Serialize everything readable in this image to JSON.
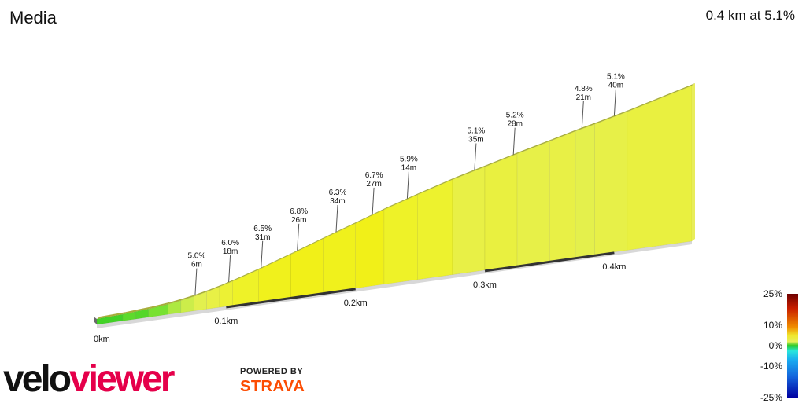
{
  "title": "Media",
  "summary": "0.4 km at 5.1%",
  "chart_data": {
    "type": "area",
    "x_unit": "km",
    "x_max": 0.46,
    "distance_ticks": [
      {
        "label": "0km",
        "value": 0.0
      },
      {
        "label": "0.1km",
        "value": 0.1
      },
      {
        "label": "0.2km",
        "value": 0.2
      },
      {
        "label": "0.3km",
        "value": 0.3
      },
      {
        "label": "0.4km",
        "value": 0.4
      }
    ],
    "segments": [
      {
        "end": 0.02,
        "grade": 0.8
      },
      {
        "end": 0.03,
        "grade": 1.4
      },
      {
        "end": 0.04,
        "grade": 1.2
      },
      {
        "end": 0.055,
        "grade": 2.0
      },
      {
        "end": 0.065,
        "grade": 3.0
      },
      {
        "end": 0.075,
        "grade": 3.6
      },
      {
        "end": 0.085,
        "grade": 4.2
      },
      {
        "end": 0.095,
        "grade": 5.0
      },
      {
        "end": 0.105,
        "grade": 5.6
      },
      {
        "end": 0.125,
        "grade": 6.0
      },
      {
        "end": 0.15,
        "grade": 6.6
      },
      {
        "end": 0.175,
        "grade": 6.8
      },
      {
        "end": 0.2,
        "grade": 6.6
      },
      {
        "end": 0.222,
        "grade": 6.8
      },
      {
        "end": 0.248,
        "grade": 6.0
      },
      {
        "end": 0.275,
        "grade": 5.8
      },
      {
        "end": 0.3,
        "grade": 5.0
      },
      {
        "end": 0.325,
        "grade": 5.2
      },
      {
        "end": 0.35,
        "grade": 4.8
      },
      {
        "end": 0.37,
        "grade": 5.0
      },
      {
        "end": 0.385,
        "grade": 4.4
      },
      {
        "end": 0.41,
        "grade": 4.8
      },
      {
        "end": 0.46,
        "grade": 5.2
      }
    ],
    "annotations": [
      {
        "x": 0.076,
        "grade": "5.0%",
        "length": "6m"
      },
      {
        "x": 0.102,
        "grade": "6.0%",
        "length": "18m"
      },
      {
        "x": 0.127,
        "grade": "6.5%",
        "length": "31m"
      },
      {
        "x": 0.155,
        "grade": "6.8%",
        "length": "26m"
      },
      {
        "x": 0.185,
        "grade": "6.3%",
        "length": "34m"
      },
      {
        "x": 0.213,
        "grade": "6.7%",
        "length": "27m"
      },
      {
        "x": 0.24,
        "grade": "5.9%",
        "length": "14m"
      },
      {
        "x": 0.292,
        "grade": "5.1%",
        "length": "35m"
      },
      {
        "x": 0.322,
        "grade": "5.2%",
        "length": "28m"
      },
      {
        "x": 0.375,
        "grade": "4.8%",
        "length": "21m"
      },
      {
        "x": 0.4,
        "grade": "5.1%",
        "length": "40m"
      }
    ],
    "legend": [
      {
        "label": "25%",
        "value": 25
      },
      {
        "label": "10%",
        "value": 10
      },
      {
        "label": "0%",
        "value": 0
      },
      {
        "label": "-10%",
        "value": -10
      },
      {
        "label": "-25%",
        "value": -25
      }
    ]
  },
  "branding": {
    "logo": "veloviewer",
    "powered_by": "POWERED BY",
    "strava": "STRAVA"
  }
}
